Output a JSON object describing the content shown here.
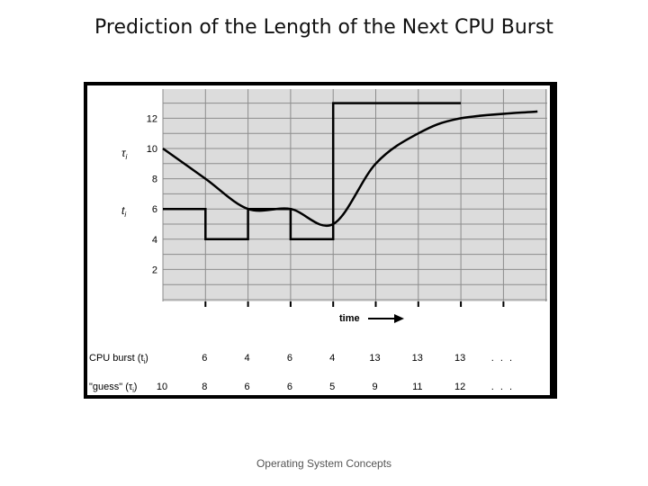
{
  "slide": {
    "title": "Prediction of the Length of the Next CPU Burst",
    "footer": "Operating System Concepts"
  },
  "chart_data": {
    "type": "line",
    "title": "",
    "xlabel": "time",
    "ylabel_tau": "τi",
    "ylabel_t": "ti",
    "ylim": [
      0,
      14
    ],
    "y_ticks": [
      "2",
      "4",
      "6",
      "8",
      "10",
      "12"
    ],
    "grid": true,
    "series": [
      {
        "label": "CPU burst (ti)",
        "values": [
          "6",
          "4",
          "6",
          "4",
          "13",
          "13",
          "13",
          "…"
        ]
      },
      {
        "label": "\"guess\" (τi)",
        "values": [
          "10",
          "8",
          "6",
          "6",
          "5",
          "9",
          "11",
          "12",
          "…"
        ]
      }
    ]
  }
}
